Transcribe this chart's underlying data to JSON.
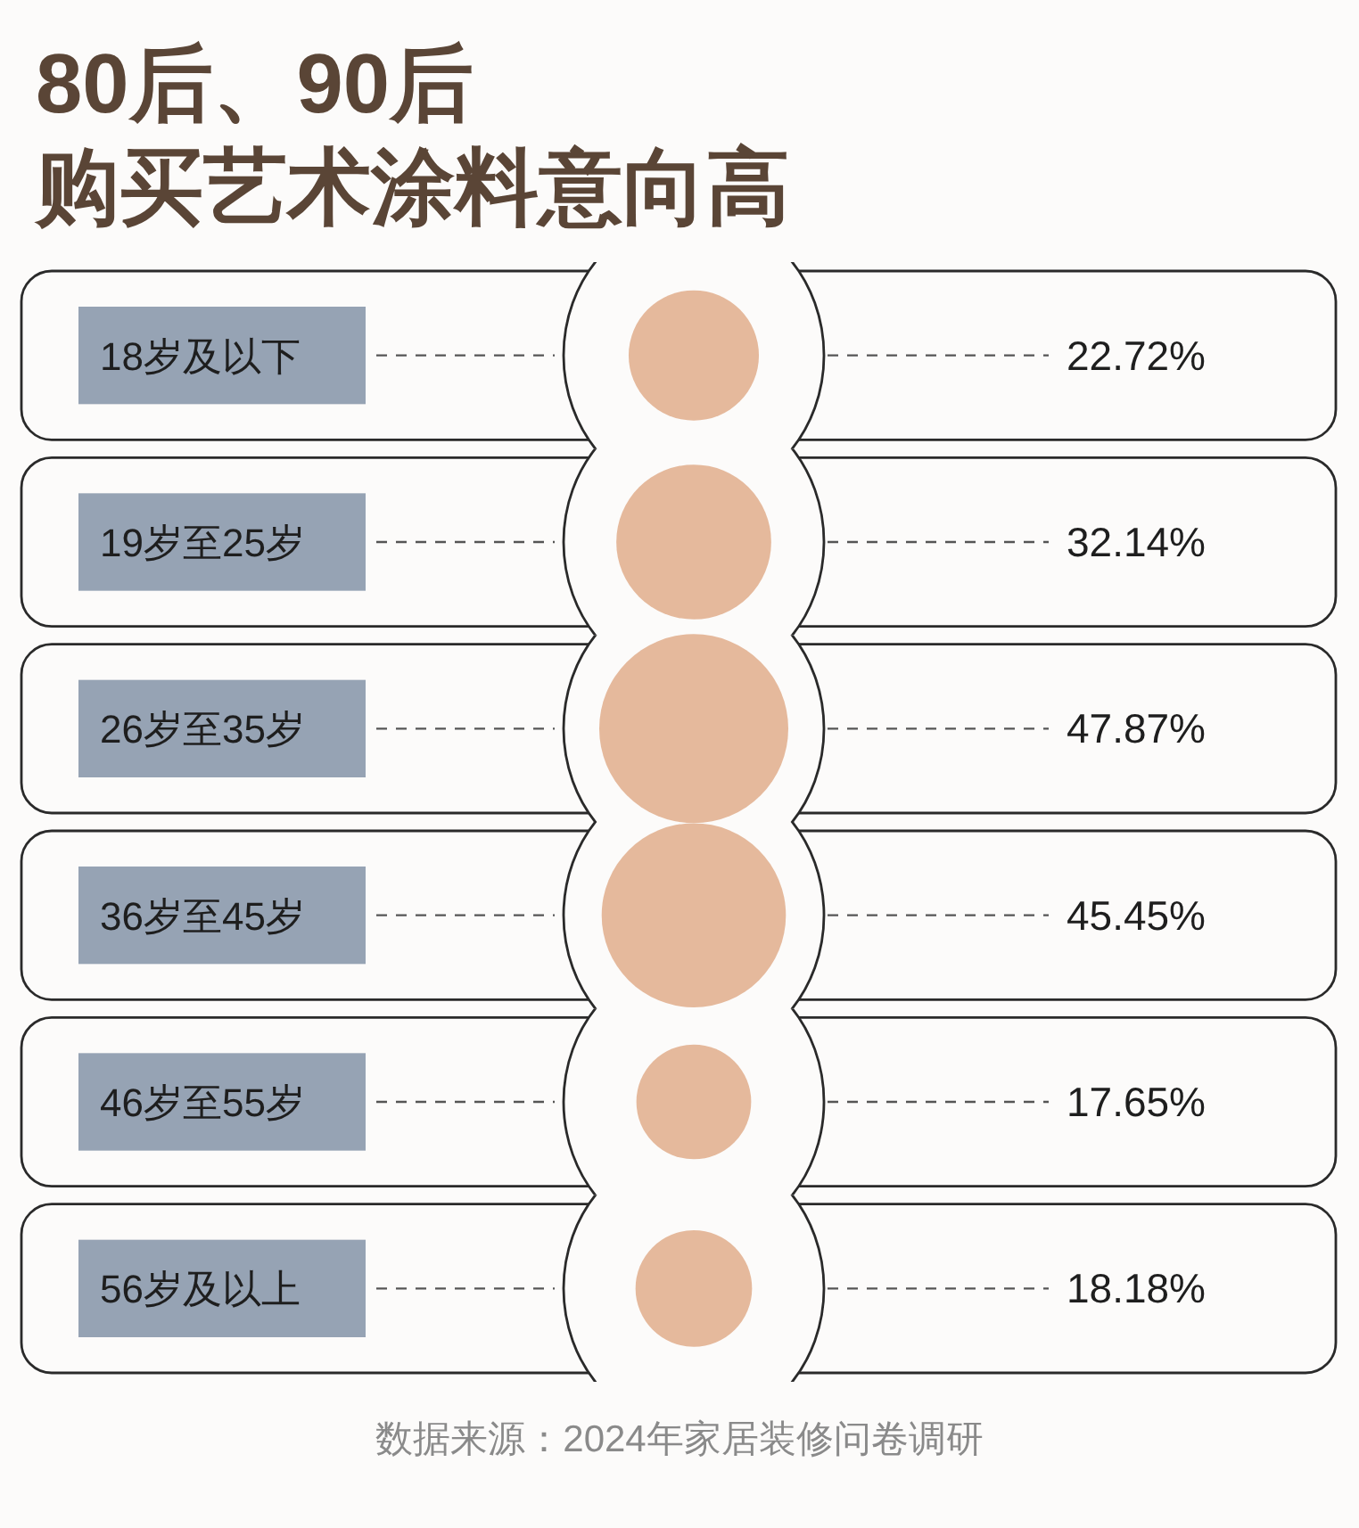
{
  "chart_data": {
    "type": "other",
    "title": "80后、90后",
    "subtitle": "购买艺术涂料意向高",
    "categories": [
      "18岁及以下",
      "19岁至25岁",
      "26岁至35岁",
      "36岁至45岁",
      "46岁至55岁",
      "56岁及以上"
    ],
    "values": [
      22.72,
      32.14,
      47.87,
      45.45,
      17.65,
      18.18
    ],
    "value_labels": [
      "22.72%",
      "32.14%",
      "47.87%",
      "45.45%",
      "17.65%",
      "18.18%"
    ],
    "color": "#e5b99c",
    "annotations": [
      "数据来源：2024年家居装修问卷调研"
    ]
  }
}
